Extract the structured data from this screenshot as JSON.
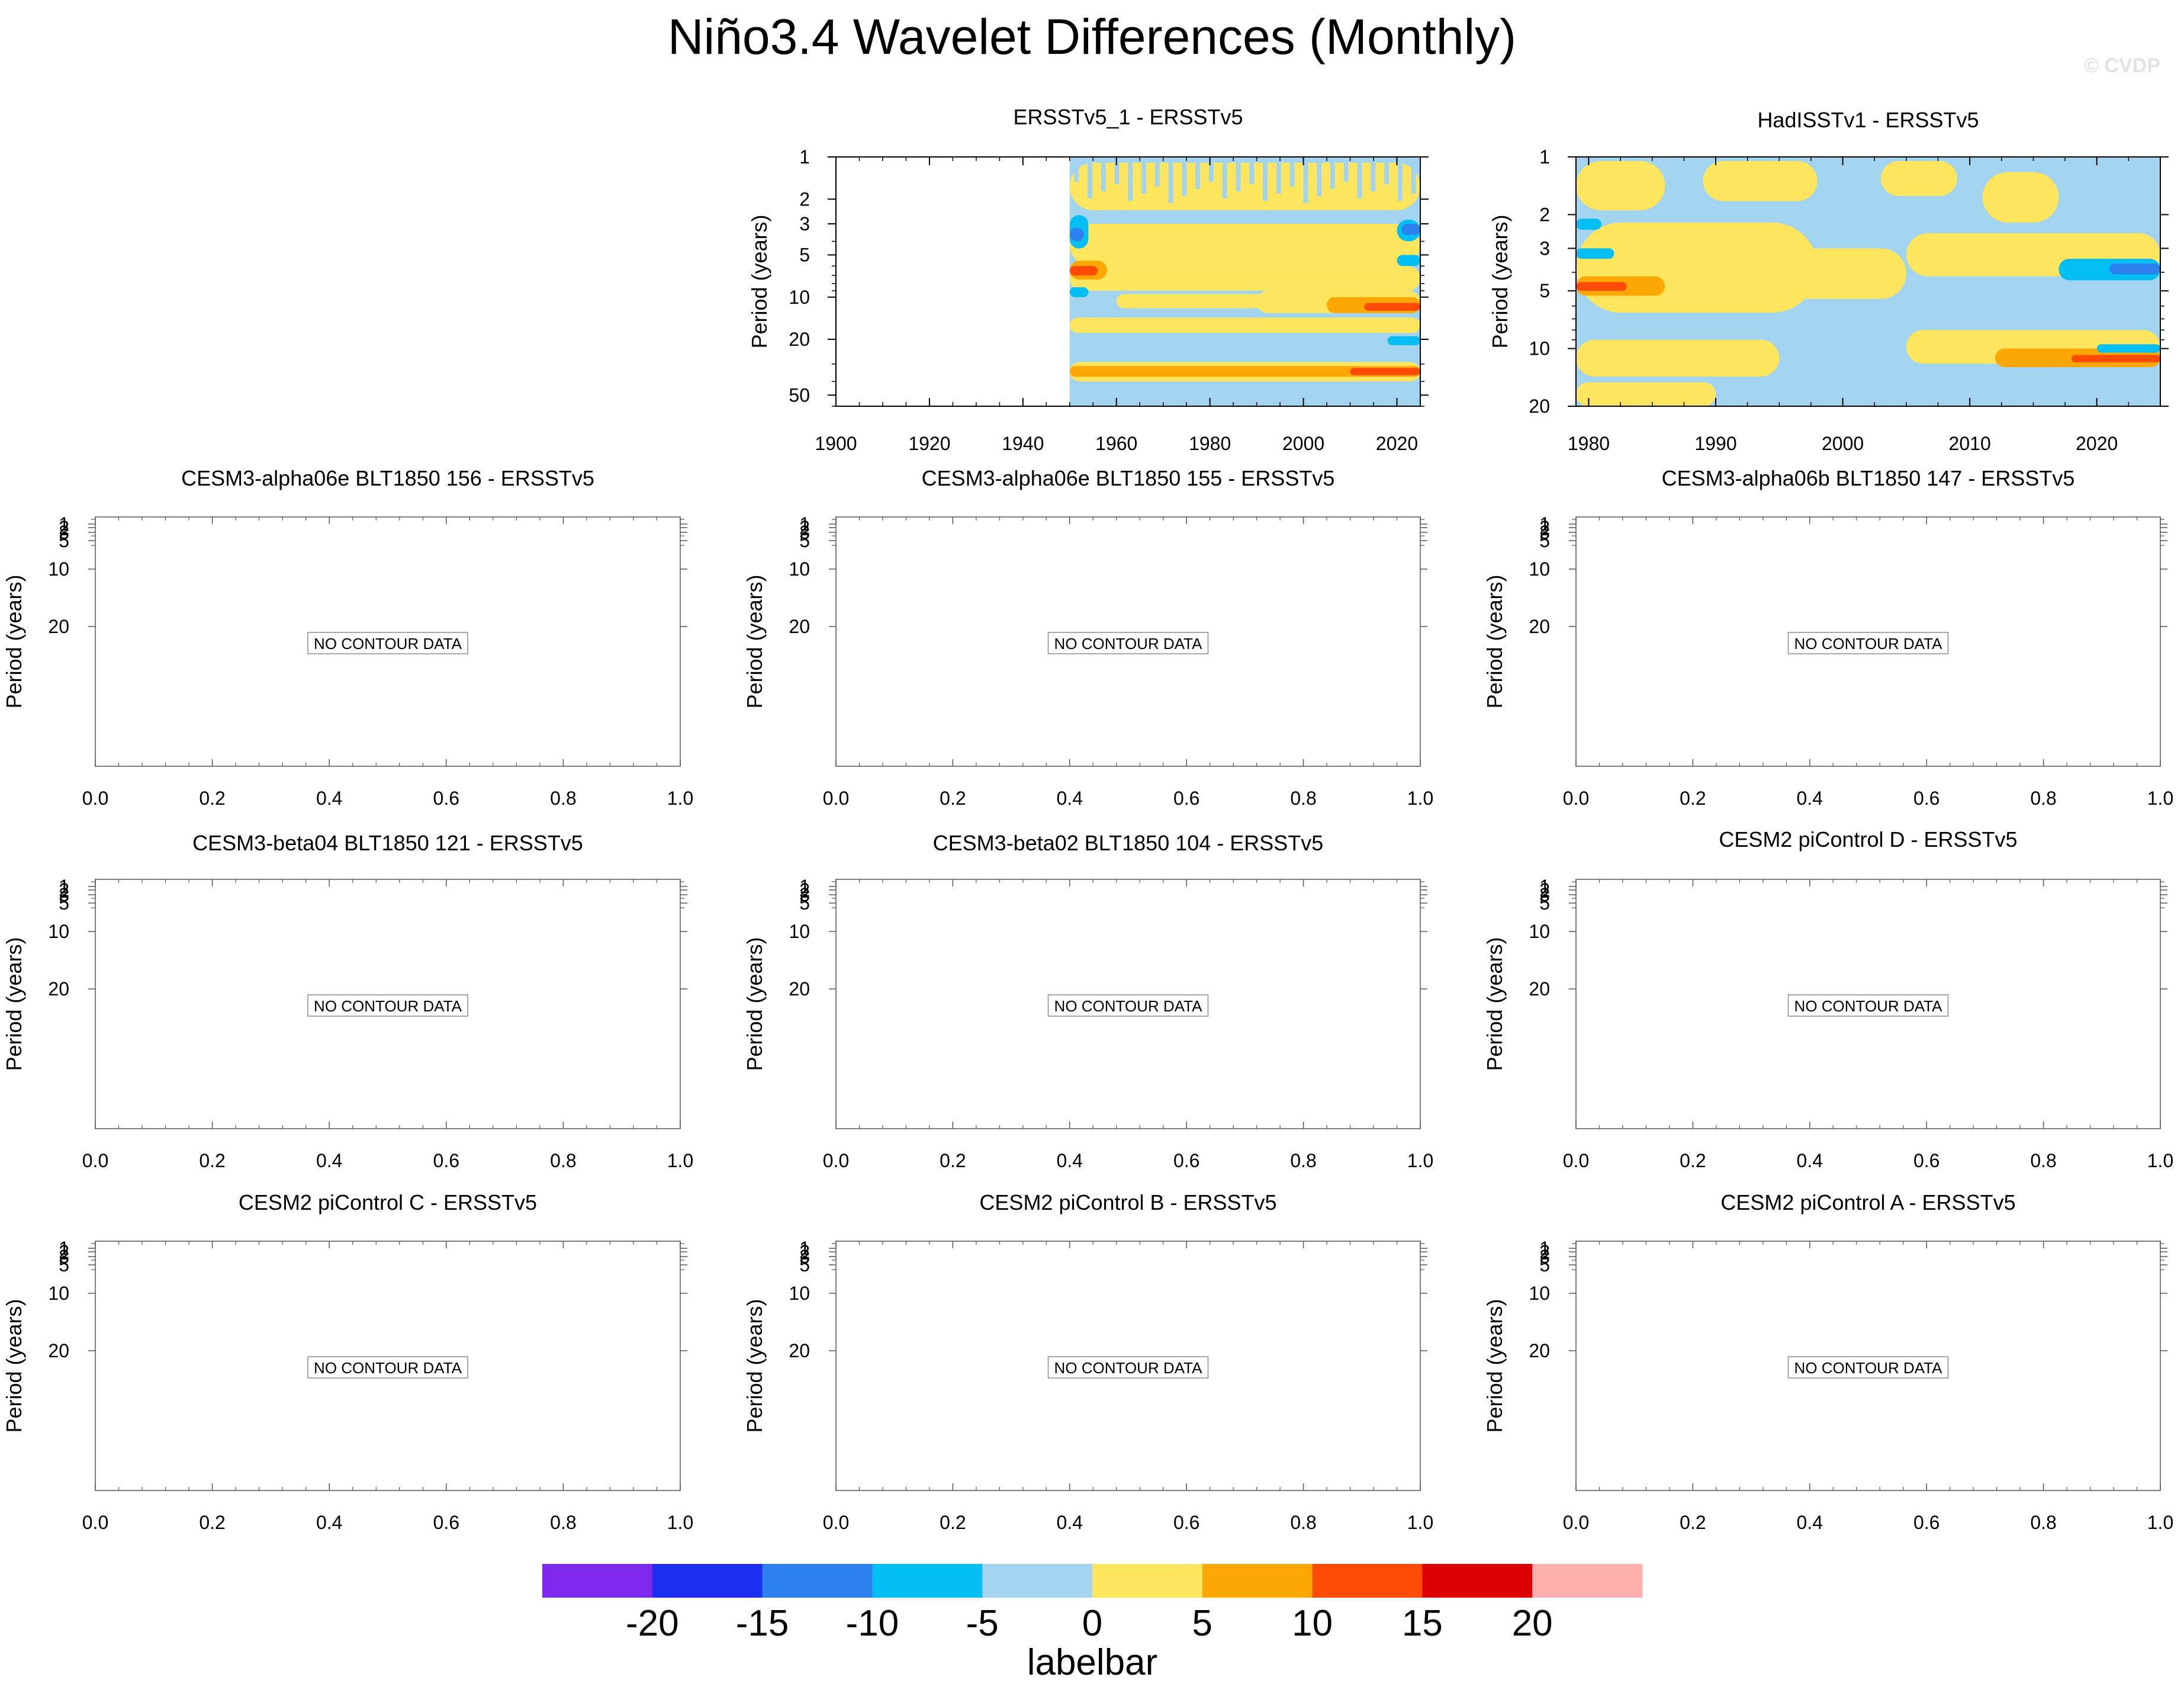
{
  "title": "Niño3.4 Wavelet Differences (Monthly)",
  "watermark": "© CVDP",
  "colors": {
    "axis": "#000000",
    "nodata_box": "#8c8c8c"
  },
  "labelbar": {
    "title": "labelbar",
    "colors": [
      "#7f29ee",
      "#1c2fee",
      "#2c81ee",
      "#03bef2",
      "#a3d4ef",
      "#fde55d",
      "#fda705",
      "#fd4b05",
      "#dc0004",
      "#feb0af"
    ],
    "tick_labels": [
      "-20",
      "-15",
      "-10",
      "-5",
      "0",
      "5",
      "10",
      "15",
      "20"
    ]
  },
  "chart_data": [
    {
      "id": "ersst5_1",
      "type": "heatmap",
      "title": "ERSSTv5_1 - ERSSTv5",
      "ylabel": "Period (years)",
      "xlabel": "",
      "xlim": [
        1900,
        2025
      ],
      "x_ticks": [
        "1900",
        "1920",
        "1940",
        "1960",
        "1980",
        "2000",
        "2020"
      ],
      "y_scale": "log",
      "y_reversed": true,
      "ylim": [
        1,
        60
      ],
      "y_ticks": [
        "1",
        "2",
        "3",
        "5",
        "10",
        "20",
        "50"
      ],
      "data_start": 1950,
      "background_value": -2,
      "regions": [
        {
          "value": 2,
          "x": [
            1950,
            2025
          ],
          "y": [
            1.1,
            2.4
          ],
          "note": "striped fine structure"
        },
        {
          "value": 2,
          "x": [
            1950,
            2025
          ],
          "y": [
            3,
            6
          ]
        },
        {
          "value": 2,
          "x": [
            1950,
            2025
          ],
          "y": [
            6,
            9
          ]
        },
        {
          "value": 2,
          "x": [
            1960,
            1998
          ],
          "y": [
            9.5,
            12
          ]
        },
        {
          "value": 2,
          "x": [
            1990,
            2025
          ],
          "y": [
            9,
            13
          ]
        },
        {
          "value": 2,
          "x": [
            1950,
            2025
          ],
          "y": [
            14,
            18
          ]
        },
        {
          "value": 2,
          "x": [
            1950,
            2025
          ],
          "y": [
            29,
            40
          ]
        },
        {
          "value": 8,
          "x": [
            1950,
            2025
          ],
          "y": [
            31,
            37
          ]
        },
        {
          "value": 8,
          "x": [
            1950,
            1958
          ],
          "y": [
            5.5,
            7.5
          ]
        },
        {
          "value": 12,
          "x": [
            1950,
            1956
          ],
          "y": [
            6,
            7
          ]
        },
        {
          "value": 8,
          "x": [
            2005,
            2025
          ],
          "y": [
            10,
            13
          ]
        },
        {
          "value": 12,
          "x": [
            2013,
            2025
          ],
          "y": [
            11,
            12.5
          ]
        },
        {
          "value": 12,
          "x": [
            2010,
            2025
          ],
          "y": [
            32,
            36
          ]
        },
        {
          "value": -8,
          "x": [
            1950,
            1954
          ],
          "y": [
            2.6,
            4.5
          ]
        },
        {
          "value": -12,
          "x": [
            1950,
            1953
          ],
          "y": [
            3.2,
            4
          ]
        },
        {
          "value": -8,
          "x": [
            1950,
            1954
          ],
          "y": [
            8.5,
            10
          ]
        },
        {
          "value": -8,
          "x": [
            2020,
            2025
          ],
          "y": [
            2.8,
            4
          ]
        },
        {
          "value": -12,
          "x": [
            2021,
            2025
          ],
          "y": [
            3,
            3.6
          ]
        },
        {
          "value": -8,
          "x": [
            2020,
            2025
          ],
          "y": [
            5,
            6
          ]
        },
        {
          "value": -8,
          "x": [
            2018,
            2025
          ],
          "y": [
            19,
            22
          ]
        }
      ]
    },
    {
      "id": "hadisst1",
      "type": "heatmap",
      "title": "HadISSTv1 - ERSSTv5",
      "ylabel": "Period (years)",
      "xlabel": "",
      "xlim": [
        1979,
        2025
      ],
      "x_ticks": [
        "1980",
        "1990",
        "2000",
        "2010",
        "2020"
      ],
      "y_scale": "log",
      "y_reversed": true,
      "ylim": [
        1,
        20
      ],
      "y_ticks": [
        "1",
        "2",
        "3",
        "5",
        "10",
        "20"
      ],
      "data_start": 1979,
      "background_value": -2,
      "regions": [
        {
          "value": 2,
          "x": [
            1979,
            1986
          ],
          "y": [
            1.05,
            1.9
          ]
        },
        {
          "value": 2,
          "x": [
            1989,
            1998
          ],
          "y": [
            1.05,
            1.7
          ]
        },
        {
          "value": 2,
          "x": [
            2003,
            2009
          ],
          "y": [
            1.05,
            1.6
          ]
        },
        {
          "value": 2,
          "x": [
            2011,
            2017
          ],
          "y": [
            1.2,
            2.2
          ]
        },
        {
          "value": 2,
          "x": [
            1979,
            1998
          ],
          "y": [
            2.2,
            6.5
          ]
        },
        {
          "value": 2,
          "x": [
            1990,
            2005
          ],
          "y": [
            3,
            5.5
          ]
        },
        {
          "value": 2,
          "x": [
            2005,
            2025
          ],
          "y": [
            2.5,
            4.2
          ]
        },
        {
          "value": 2,
          "x": [
            1979,
            1995
          ],
          "y": [
            9,
            14
          ]
        },
        {
          "value": 2,
          "x": [
            2005,
            2025
          ],
          "y": [
            8,
            12
          ]
        },
        {
          "value": 2,
          "x": [
            1979,
            1990
          ],
          "y": [
            15,
            20
          ]
        },
        {
          "value": 8,
          "x": [
            1979,
            1986
          ],
          "y": [
            4.2,
            5.3
          ]
        },
        {
          "value": 12,
          "x": [
            1979,
            1983
          ],
          "y": [
            4.5,
            5
          ]
        },
        {
          "value": 8,
          "x": [
            2012,
            2025
          ],
          "y": [
            10,
            12.5
          ]
        },
        {
          "value": 12,
          "x": [
            2018,
            2025
          ],
          "y": [
            10.8,
            11.8
          ]
        },
        {
          "value": -8,
          "x": [
            1979,
            1981
          ],
          "y": [
            2.1,
            2.4
          ]
        },
        {
          "value": -8,
          "x": [
            1979,
            1982
          ],
          "y": [
            3,
            3.4
          ]
        },
        {
          "value": -8,
          "x": [
            2017,
            2025
          ],
          "y": [
            3.4,
            4.4
          ]
        },
        {
          "value": -12,
          "x": [
            2021,
            2025
          ],
          "y": [
            3.6,
            4.1
          ]
        },
        {
          "value": -8,
          "x": [
            2020,
            2025
          ],
          "y": [
            9.5,
            10.5
          ]
        }
      ]
    },
    {
      "id": "p3",
      "type": "heatmap",
      "title": "CESM3-alpha06e BLT1850 156 - ERSSTv5",
      "ylabel": "Period (years)",
      "x_ticks": [
        "0.0",
        "0.2",
        "0.4",
        "0.6",
        "0.8",
        "1.0"
      ],
      "y_ticks": [
        "1",
        "2",
        "3",
        "5",
        "10",
        "20"
      ],
      "message": "NO CONTOUR DATA"
    },
    {
      "id": "p4",
      "type": "heatmap",
      "title": "CESM3-alpha06e BLT1850 155 - ERSSTv5",
      "ylabel": "Period (years)",
      "x_ticks": [
        "0.0",
        "0.2",
        "0.4",
        "0.6",
        "0.8",
        "1.0"
      ],
      "y_ticks": [
        "1",
        "2",
        "3",
        "5",
        "10",
        "20"
      ],
      "message": "NO CONTOUR DATA"
    },
    {
      "id": "p5",
      "type": "heatmap",
      "title": "CESM3-alpha06b BLT1850 147 - ERSSTv5",
      "ylabel": "Period (years)",
      "x_ticks": [
        "0.0",
        "0.2",
        "0.4",
        "0.6",
        "0.8",
        "1.0"
      ],
      "y_ticks": [
        "1",
        "2",
        "3",
        "5",
        "10",
        "20"
      ],
      "message": "NO CONTOUR DATA"
    },
    {
      "id": "p6",
      "type": "heatmap",
      "title": "CESM3-beta04 BLT1850 121 - ERSSTv5",
      "ylabel": "Period (years)",
      "x_ticks": [
        "0.0",
        "0.2",
        "0.4",
        "0.6",
        "0.8",
        "1.0"
      ],
      "y_ticks": [
        "1",
        "2",
        "3",
        "5",
        "10",
        "20"
      ],
      "message": "NO CONTOUR DATA"
    },
    {
      "id": "p7",
      "type": "heatmap",
      "title": "CESM3-beta02 BLT1850 104 - ERSSTv5",
      "ylabel": "Period (years)",
      "x_ticks": [
        "0.0",
        "0.2",
        "0.4",
        "0.6",
        "0.8",
        "1.0"
      ],
      "y_ticks": [
        "1",
        "2",
        "3",
        "5",
        "10",
        "20"
      ],
      "message": "NO CONTOUR DATA"
    },
    {
      "id": "p8",
      "type": "heatmap",
      "title": "CESM2 piControl D - ERSSTv5",
      "ylabel": "Period (years)",
      "x_ticks": [
        "0.0",
        "0.2",
        "0.4",
        "0.6",
        "0.8",
        "1.0"
      ],
      "y_ticks": [
        "1",
        "2",
        "3",
        "5",
        "10",
        "20"
      ],
      "message": "NO CONTOUR DATA"
    },
    {
      "id": "p9",
      "type": "heatmap",
      "title": "CESM2 piControl C - ERSSTv5",
      "ylabel": "Period (years)",
      "x_ticks": [
        "0.0",
        "0.2",
        "0.4",
        "0.6",
        "0.8",
        "1.0"
      ],
      "y_ticks": [
        "1",
        "2",
        "3",
        "5",
        "10",
        "20"
      ],
      "message": "NO CONTOUR DATA"
    },
    {
      "id": "p10",
      "type": "heatmap",
      "title": "CESM2 piControl B - ERSSTv5",
      "ylabel": "Period (years)",
      "x_ticks": [
        "0.0",
        "0.2",
        "0.4",
        "0.6",
        "0.8",
        "1.0"
      ],
      "y_ticks": [
        "1",
        "2",
        "3",
        "5",
        "10",
        "20"
      ],
      "message": "NO CONTOUR DATA"
    },
    {
      "id": "p11",
      "type": "heatmap",
      "title": "CESM2 piControl A - ERSSTv5",
      "ylabel": "Period (years)",
      "x_ticks": [
        "0.0",
        "0.2",
        "0.4",
        "0.6",
        "0.8",
        "1.0"
      ],
      "y_ticks": [
        "1",
        "2",
        "3",
        "5",
        "10",
        "20"
      ],
      "message": "NO CONTOUR DATA"
    }
  ]
}
